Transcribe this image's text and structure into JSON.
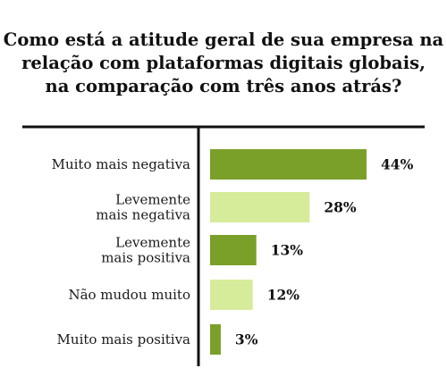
{
  "chart_data": {
    "type": "bar",
    "orientation": "horizontal",
    "title": "Como está a atitude geral de sua empresa na\nrelação com plataformas digitais globais,\nna comparação com três anos atrás?",
    "categories": [
      "Muito mais negativa",
      "Levemente\nmais negativa",
      "Levemente\nmais positiva",
      "Não mudou muito",
      "Muito mais positiva"
    ],
    "values": [
      44,
      28,
      13,
      12,
      3
    ],
    "value_labels": [
      "44%",
      "28%",
      "13%",
      "12%",
      "3%"
    ],
    "unit": "%",
    "xlim": [
      0,
      50
    ],
    "grid": false,
    "legend": "none",
    "colors": {
      "dark_bar": "#7aa02a",
      "light_bar": "#d6ec9b",
      "axis": "#111111",
      "text": "#111111"
    },
    "bar_color_pattern": [
      "dark_bar",
      "light_bar",
      "dark_bar",
      "light_bar",
      "dark_bar"
    ]
  }
}
